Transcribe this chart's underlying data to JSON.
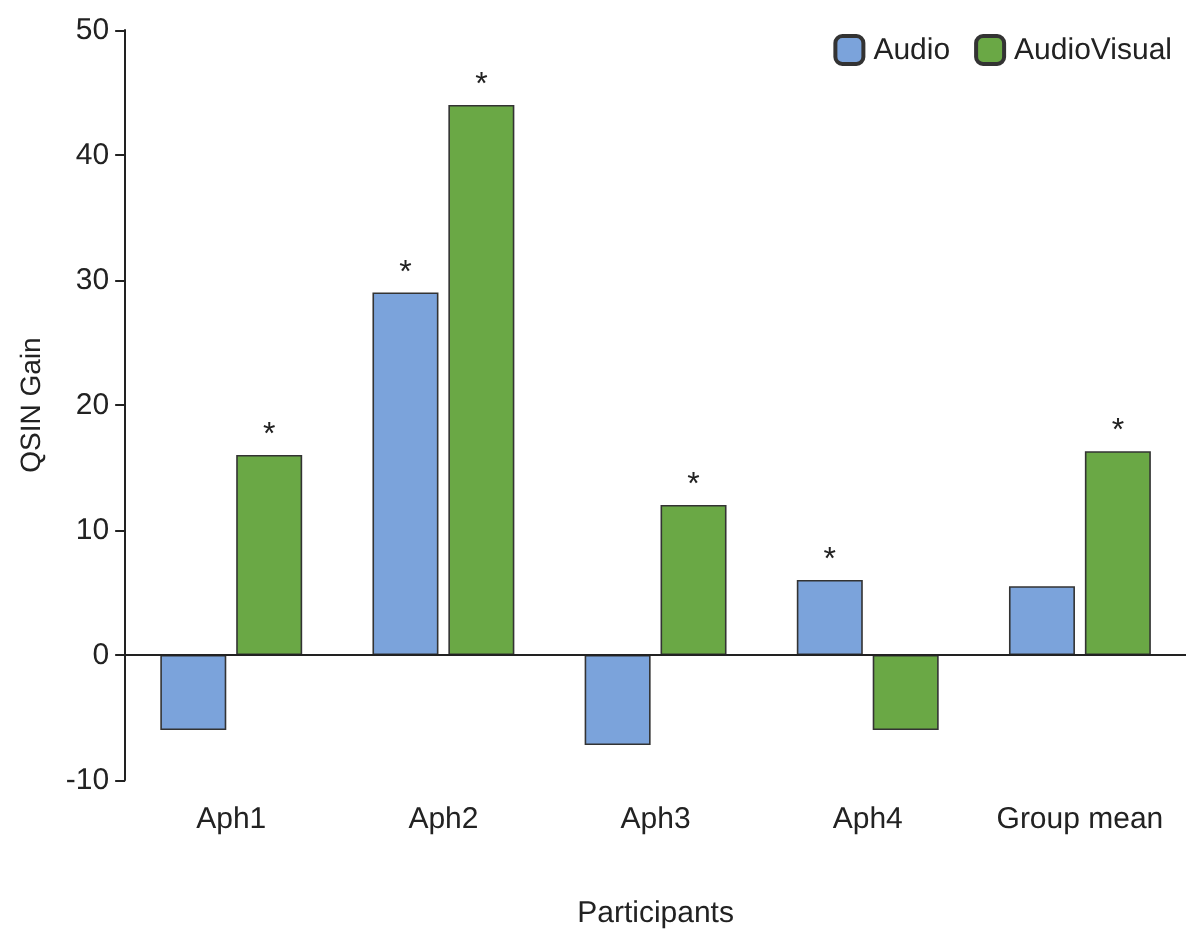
{
  "chart_data": {
    "type": "bar",
    "xlabel": "Participants",
    "ylabel": "QSIN Gain",
    "categories": [
      "Aph1",
      "Aph2",
      "Aph3",
      "Aph4",
      "Group mean"
    ],
    "series": [
      {
        "name": "Audio",
        "color": "#7ba3db",
        "values": [
          -6,
          29,
          -7.2,
          6,
          5.5
        ]
      },
      {
        "name": "AudioVisual",
        "color": "#6aa845",
        "values": [
          16,
          44,
          12,
          -6,
          16.3
        ]
      }
    ],
    "ref_lines": [
      {
        "axis": "y",
        "value": 0,
        "color": "#222222"
      }
    ],
    "ylim": [
      -10,
      50
    ],
    "yticks": [
      -10,
      0,
      10,
      20,
      30,
      40,
      50
    ],
    "grid": false,
    "legend": "top right",
    "annotations": [
      {
        "text": "*",
        "x": "Aph1",
        "y": 16
      },
      {
        "text": "*",
        "x": "Aph2",
        "y": 29
      },
      {
        "text": "*",
        "x": "Aph2",
        "y": 44
      },
      {
        "text": "*",
        "x": "Aph3",
        "y": 12
      },
      {
        "text": "*",
        "x": "Aph4",
        "y": 6
      },
      {
        "text": "*",
        "x": "Group mean",
        "y": 16.3
      }
    ]
  }
}
